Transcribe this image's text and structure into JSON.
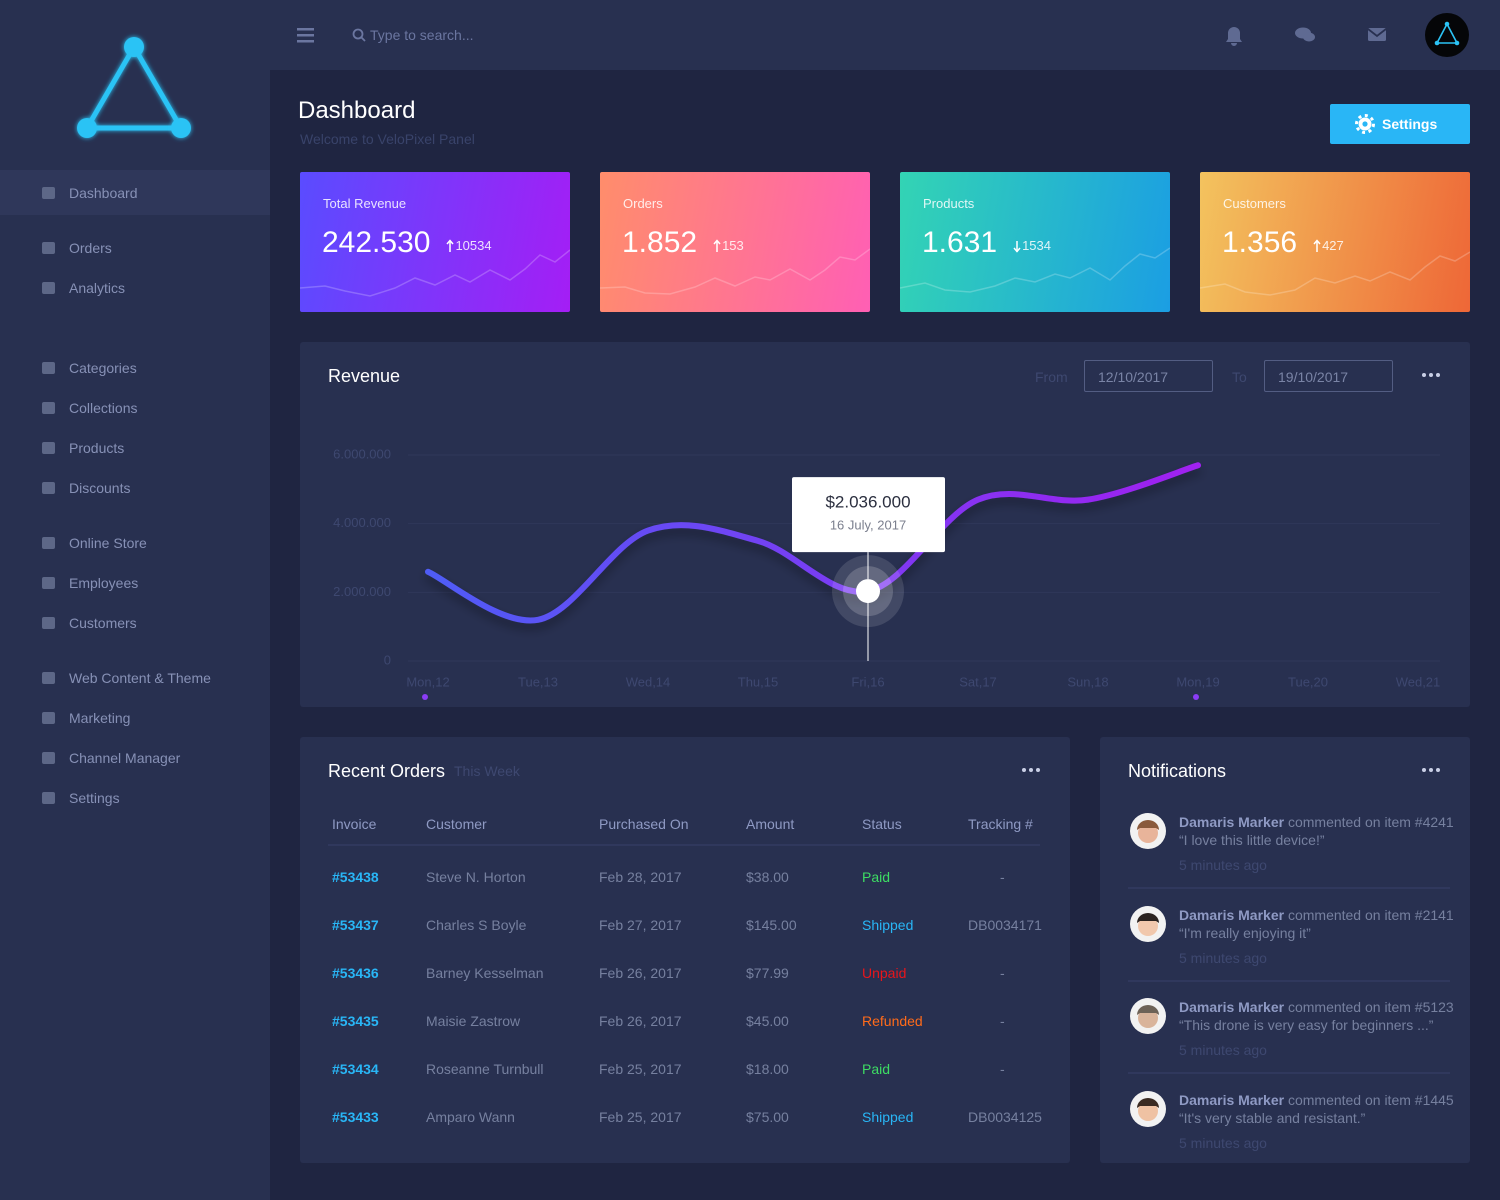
{
  "sidebar": {
    "nav": [
      "Dashboard",
      "Orders",
      "Analytics",
      "Categories",
      "Collections",
      "Products",
      "Discounts",
      "Online Store",
      "Employees",
      "Customers",
      "Web Content & Theme",
      "Marketing",
      "Channel Manager",
      "Settings"
    ],
    "active": 0
  },
  "topbar": {
    "search_placeholder": "Type to search..."
  },
  "header": {
    "title": "Dashboard",
    "subtitle": "Welcome to VeloPixel Panel",
    "button": "Settings"
  },
  "stats": [
    {
      "label": "Total Revenue",
      "value": "242.530",
      "change": "10534",
      "trend": "up",
      "gradient": [
        "#5a4cff",
        "#a41ef5"
      ]
    },
    {
      "label": "Orders",
      "value": "1.852",
      "change": "153",
      "trend": "up",
      "gradient": [
        "#ff8d6b",
        "#ff5fb4"
      ]
    },
    {
      "label": "Products",
      "value": "1.631",
      "change": "1534",
      "trend": "down",
      "gradient": [
        "#33d4b4",
        "#1b9ee3"
      ]
    },
    {
      "label": "Customers",
      "value": "1.356",
      "change": "427",
      "trend": "up",
      "gradient": [
        "#f3c35e",
        "#ee6737"
      ]
    }
  ],
  "revenue": {
    "from_label": "From",
    "from": "12/10/2017",
    "to_label": "To",
    "to": "19/10/2017"
  },
  "chart_data": {
    "type": "line",
    "title": "Revenue",
    "categories": [
      "Mon,12",
      "Tue,13",
      "Wed,14",
      "Thu,15",
      "Fri,16",
      "Sat,17",
      "Sun,18",
      "Mon,19",
      "Tue,20",
      "Wed,21"
    ],
    "values": [
      2600000,
      1200000,
      3800000,
      3500000,
      2036000,
      4700000,
      4700000,
      5700000,
      null,
      null
    ],
    "value_labels": [
      null,
      null,
      null,
      null,
      "$2.036.000",
      null,
      null,
      null,
      null,
      null
    ],
    "tooltip_date": "16 July, 2017",
    "gradient": [
      "#4f5cf6",
      "#a020f0"
    ],
    "ylim": [
      0,
      6000000
    ],
    "yticks": [
      0,
      {
        "value": 2000000,
        "label": "2.000.000"
      },
      {
        "value": 4000000,
        "label": "4.000.000"
      },
      {
        "value": 6000000,
        "label": "6.000.000"
      }
    ],
    "grid": true
  },
  "orders": {
    "title": "Recent Orders",
    "period": "This Week",
    "columns": [
      "Invoice",
      "Customer",
      "Purchased On",
      "Amount",
      "Status",
      "Tracking #"
    ],
    "rows": [
      [
        "#53438",
        "Steve N. Horton",
        "Feb 28, 2017",
        "$38.00",
        "Paid",
        "-"
      ],
      [
        "#53437",
        "Charles S Boyle",
        "Feb 27, 2017",
        "$145.00",
        "Shipped",
        "DB0034171"
      ],
      [
        "#53436",
        "Barney Kesselman",
        "Feb 26, 2017",
        "$77.99",
        "Unpaid",
        "-"
      ],
      [
        "#53435",
        "Maisie Zastrow",
        "Feb 26, 2017",
        "$45.00",
        "Refunded",
        "-"
      ],
      [
        "#53434",
        "Roseanne Turnbull",
        "Feb 25, 2017",
        "$18.00",
        "Paid",
        "-"
      ],
      [
        "#53433",
        "Amparo Wann",
        "Feb 25, 2017",
        "$75.00",
        "Shipped",
        "DB0034125"
      ]
    ],
    "status_colors": [
      "#3ddc63",
      "#29b6f6",
      "#e8151b",
      "#ff6b1a",
      "#3ddc63",
      "#29b6f6"
    ]
  },
  "notifications": {
    "title": "Notifications",
    "items": [
      {
        "name": "Damaris Marker",
        "text": "commented on item #4241",
        "quote": "“I love this little device!”",
        "time": "5 minutes ago"
      },
      {
        "name": "Damaris Marker",
        "text": "commented on item #2141",
        "quote": "“I'm really enjoying it”",
        "time": "5 minutes ago"
      },
      {
        "name": "Damaris Marker",
        "text": "commented on item #5123",
        "quote": "“This drone is very easy for beginners ...”",
        "time": "5 minutes ago"
      },
      {
        "name": "Damaris Marker",
        "text": "commented on item #1445",
        "quote": "“It's very stable and resistant.”",
        "time": "5 minutes ago"
      }
    ]
  }
}
